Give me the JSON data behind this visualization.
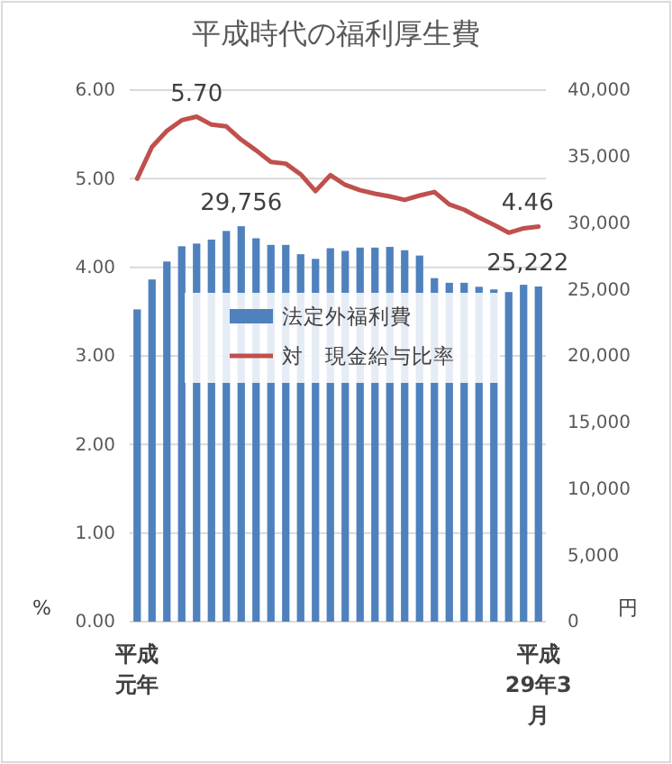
{
  "chart_data": {
    "type": "bar",
    "title": "平成時代の福利厚生費",
    "categories": [
      "平成元年",
      null,
      null,
      null,
      null,
      null,
      null,
      null,
      null,
      null,
      null,
      null,
      null,
      null,
      null,
      null,
      null,
      null,
      null,
      null,
      null,
      null,
      null,
      null,
      null,
      null,
      null,
      "平成29年3月"
    ],
    "series": [
      {
        "name": "法定外福利費",
        "axis": "y2",
        "color": "#4f81bd",
        "values": [
          23500,
          25750,
          27100,
          28250,
          28450,
          28750,
          29400,
          29756,
          28850,
          28350,
          28350,
          27650,
          27300,
          28100,
          27900,
          28150,
          28150,
          28200,
          27950,
          27550,
          25850,
          25500,
          25500,
          25200,
          25000,
          24800,
          25350,
          25222
        ],
        "value_labels": [
          null,
          null,
          null,
          null,
          null,
          null,
          null,
          "29,756",
          null,
          null,
          null,
          null,
          null,
          null,
          null,
          null,
          null,
          null,
          null,
          null,
          null,
          null,
          null,
          null,
          null,
          null,
          null,
          "25,222"
        ]
      },
      {
        "name": "対　現金給与比率",
        "type": "line",
        "axis": "y",
        "color": "#c0504d",
        "values": [
          5.0,
          5.36,
          5.54,
          5.66,
          5.7,
          5.61,
          5.59,
          5.44,
          5.32,
          5.19,
          5.17,
          5.05,
          4.86,
          5.04,
          4.93,
          4.87,
          4.83,
          4.8,
          4.76,
          4.81,
          4.85,
          4.71,
          4.65,
          4.56,
          4.48,
          4.39,
          4.44,
          4.46
        ],
        "value_labels": [
          null,
          null,
          null,
          null,
          "5.70",
          null,
          null,
          null,
          null,
          null,
          null,
          null,
          null,
          null,
          null,
          null,
          null,
          null,
          null,
          null,
          null,
          null,
          null,
          null,
          null,
          null,
          null,
          "4.46"
        ]
      }
    ],
    "ylabel": "%",
    "y2label": "円",
    "ylim": [
      0,
      6
    ],
    "yticks": [
      {
        "value": 0,
        "label": "0.00"
      },
      {
        "value": 1,
        "label": "1.00"
      },
      {
        "value": 2,
        "label": "2.00"
      },
      {
        "value": 3,
        "label": "3.00"
      },
      {
        "value": 4,
        "label": "4.00"
      },
      {
        "value": 5,
        "label": "5.00"
      },
      {
        "value": 6,
        "label": "6.00"
      }
    ],
    "y2lim": [
      0,
      40000
    ],
    "y2ticks": [
      {
        "value": 0,
        "label": "0"
      },
      {
        "value": 5000,
        "label": "5,000"
      },
      {
        "value": 10000,
        "label": "10,000"
      },
      {
        "value": 15000,
        "label": "15,000"
      },
      {
        "value": 20000,
        "label": "20,000"
      },
      {
        "value": 25000,
        "label": "25,000"
      },
      {
        "value": 30000,
        "label": "30,000"
      },
      {
        "value": 35000,
        "label": "35,000"
      },
      {
        "value": 40000,
        "label": "40,000"
      }
    ],
    "grid": "y",
    "legend": "center"
  }
}
